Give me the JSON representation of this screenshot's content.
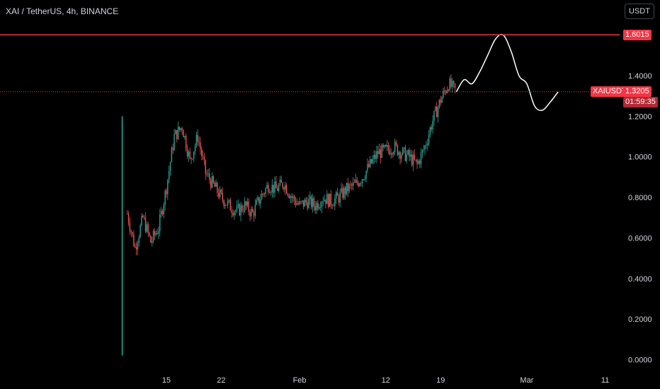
{
  "header": {
    "symbol_title": "XAI / TetherUS, 4h, BINANCE",
    "currency_button": "USDT"
  },
  "colors": {
    "up": "#26a69a",
    "down": "#ef5350",
    "resistance": "#f23645",
    "background": "#000000",
    "projection": "#ffffff"
  },
  "price_tags": {
    "resistance": "1.6015",
    "symbol": "XAIUSDT",
    "last_price": "1.3205",
    "countdown": "01:59:35"
  },
  "chart_data": {
    "type": "candlestick",
    "title": "XAI / TetherUS, 4h, BINANCE",
    "xlabel": "",
    "ylabel": "",
    "ylim": [
      0.0,
      1.75
    ],
    "y_ticks": [
      "0.0000",
      "0.2000",
      "0.4000",
      "0.6000",
      "0.8000",
      "1.0000",
      "1.2000",
      "1.4000"
    ],
    "x_ticks": [
      "15",
      "22",
      "Feb",
      "12",
      "19",
      "Mar",
      "11"
    ],
    "resistance_level": 1.6015,
    "last_price": 1.3205,
    "grid": false,
    "listing_candle": {
      "date": "2024-01-09",
      "open": 1.2,
      "low": 0.02,
      "close": 0.72
    },
    "close_path": [
      [
        "2024-01-10",
        0.72
      ],
      [
        "2024-01-11",
        0.55
      ],
      [
        "2024-01-12",
        0.7
      ],
      [
        "2024-01-13",
        0.58
      ],
      [
        "2024-01-14",
        0.65
      ],
      [
        "2024-01-15",
        0.85
      ],
      [
        "2024-01-16",
        1.1
      ],
      [
        "2024-01-17",
        1.15
      ],
      [
        "2024-01-18",
        0.98
      ],
      [
        "2024-01-19",
        1.1
      ],
      [
        "2024-01-20",
        0.92
      ],
      [
        "2024-01-21",
        0.86
      ],
      [
        "2024-01-22",
        0.8
      ],
      [
        "2024-01-23",
        0.76
      ],
      [
        "2024-01-24",
        0.73
      ],
      [
        "2024-01-25",
        0.76
      ],
      [
        "2024-01-26",
        0.72
      ],
      [
        "2024-01-27",
        0.8
      ],
      [
        "2024-01-28",
        0.86
      ],
      [
        "2024-01-29",
        0.84
      ],
      [
        "2024-01-30",
        0.87
      ],
      [
        "2024-01-31",
        0.8
      ],
      [
        "2024-02-01",
        0.76
      ],
      [
        "2024-02-02",
        0.78
      ],
      [
        "2024-02-03",
        0.76
      ],
      [
        "2024-02-04",
        0.8
      ],
      [
        "2024-02-05",
        0.78
      ],
      [
        "2024-02-06",
        0.8
      ],
      [
        "2024-02-07",
        0.84
      ],
      [
        "2024-02-08",
        0.86
      ],
      [
        "2024-02-09",
        0.9
      ],
      [
        "2024-02-10",
        0.96
      ],
      [
        "2024-02-11",
        1.02
      ],
      [
        "2024-02-12",
        1.03
      ],
      [
        "2024-02-13",
        1.05
      ],
      [
        "2024-02-14",
        1.02
      ],
      [
        "2024-02-15",
        1.0
      ],
      [
        "2024-02-16",
        0.96
      ],
      [
        "2024-02-17",
        1.05
      ],
      [
        "2024-02-18",
        1.18
      ],
      [
        "2024-02-19",
        1.28
      ],
      [
        "2024-02-20",
        1.36
      ],
      [
        "2024-02-21",
        1.32
      ]
    ],
    "projection_path": [
      [
        "2024-02-21",
        1.32
      ],
      [
        "2024-02-22",
        1.38
      ],
      [
        "2024-02-23",
        1.36
      ],
      [
        "2024-02-24",
        1.42
      ],
      [
        "2024-02-25",
        1.5
      ],
      [
        "2024-02-26",
        1.58
      ],
      [
        "2024-02-27",
        1.6
      ],
      [
        "2024-02-28",
        1.52
      ],
      [
        "2024-02-29",
        1.4
      ],
      [
        "2024-03-01",
        1.36
      ],
      [
        "2024-03-02",
        1.25
      ],
      [
        "2024-03-03",
        1.23
      ],
      [
        "2024-03-04",
        1.27
      ],
      [
        "2024-03-05",
        1.32
      ]
    ]
  }
}
